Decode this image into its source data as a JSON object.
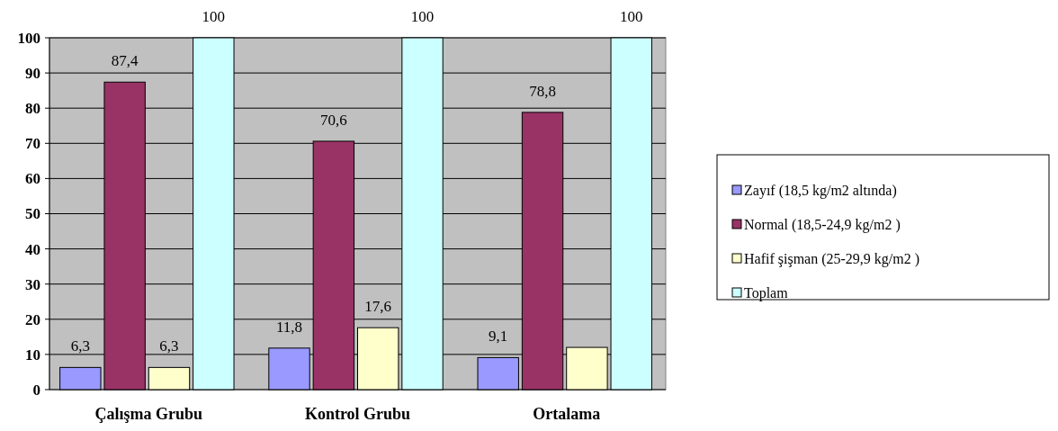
{
  "chart_data": {
    "type": "bar",
    "categories": [
      "Çalışma Grubu",
      "Kontrol Grubu",
      "Ortalama"
    ],
    "series": [
      {
        "name": "Zayıf (18,5 kg/m2 altında)",
        "color": "#9999ff",
        "values": [
          6.3,
          11.8,
          9.1
        ],
        "value_labels": [
          "6,3",
          "11,8",
          "9,1"
        ]
      },
      {
        "name": "Normal (18,5-24,9 kg/m2 )",
        "color": "#993366",
        "values": [
          87.4,
          70.6,
          78.8
        ],
        "value_labels": [
          "87,4",
          "70,6",
          "78,8"
        ]
      },
      {
        "name": "Hafif şişman (25-29,9 kg/m2 )",
        "color": "#ffffcc",
        "values": [
          6.3,
          17.6,
          12
        ],
        "value_labels": [
          "6,3",
          "17,6",
          null
        ]
      },
      {
        "name": "Toplam",
        "color": "#ccffff",
        "values": [
          100,
          100,
          100
        ],
        "value_labels": [
          "100",
          "100",
          "100"
        ]
      }
    ],
    "ylim": [
      0,
      100
    ],
    "yticks": [
      0,
      10,
      20,
      30,
      40,
      50,
      60,
      70,
      80,
      90,
      100
    ],
    "grid": "y",
    "legend": "right"
  }
}
